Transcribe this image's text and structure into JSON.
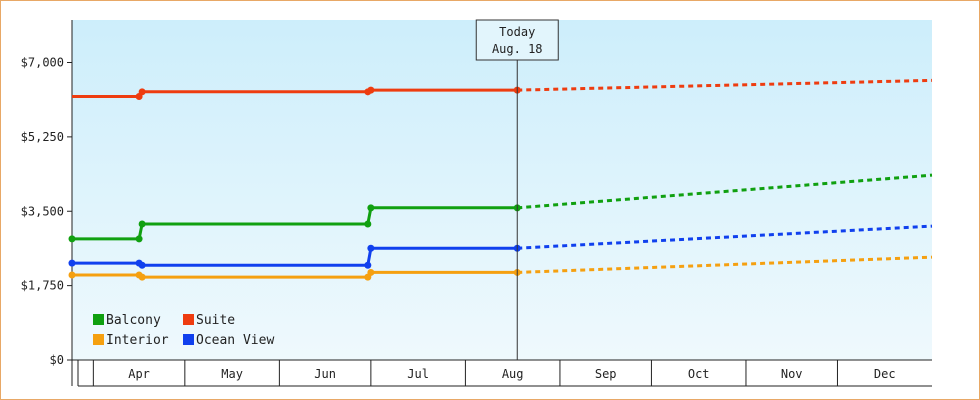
{
  "chart_data": {
    "type": "line",
    "x_type": "date",
    "xlim": [
      "2023-03-25",
      "2024-01-01"
    ],
    "ylim": [
      0,
      8000
    ],
    "y_ticks": [
      0,
      1750,
      3500,
      5250,
      7000
    ],
    "y_tick_labels": [
      "$0",
      "$1,750",
      "$3,500",
      "$5,250",
      "$7,000"
    ],
    "month_labels": [
      "Apr",
      "May",
      "Jun",
      "Jul",
      "Aug",
      "Sep",
      "Oct",
      "Nov",
      "Dec"
    ],
    "today_date": "2023-08-18",
    "today_label": "Today",
    "today_sublabel": "Aug. 18",
    "grid": false,
    "legend_position": "bottom-left",
    "series": [
      {
        "name": "Suite",
        "color": "#ee3c10",
        "history": [
          [
            "2023-03-25",
            6200
          ],
          [
            "2023-04-16",
            6200
          ],
          [
            "2023-04-17",
            6310
          ],
          [
            "2023-06-30",
            6310
          ],
          [
            "2023-07-01",
            6350
          ],
          [
            "2023-08-18",
            6350
          ]
        ],
        "markers": [
          [
            "2023-04-16",
            6200
          ],
          [
            "2023-04-17",
            6310
          ],
          [
            "2023-06-30",
            6310
          ],
          [
            "2023-07-01",
            6350
          ],
          [
            "2023-08-18",
            6350
          ]
        ],
        "forecast": [
          [
            "2023-08-18",
            6350
          ],
          [
            "2024-01-01",
            6580
          ]
        ]
      },
      {
        "name": "Balcony",
        "color": "#10a010",
        "history": [
          [
            "2023-03-25",
            2850
          ],
          [
            "2023-04-16",
            2850
          ],
          [
            "2023-04-17",
            3200
          ],
          [
            "2023-06-30",
            3200
          ],
          [
            "2023-07-01",
            3580
          ],
          [
            "2023-08-18",
            3580
          ]
        ],
        "markers": [
          [
            "2023-03-25",
            2850
          ],
          [
            "2023-04-16",
            2850
          ],
          [
            "2023-04-17",
            3200
          ],
          [
            "2023-06-30",
            3200
          ],
          [
            "2023-07-01",
            3580
          ],
          [
            "2023-08-18",
            3580
          ]
        ],
        "forecast": [
          [
            "2023-08-18",
            3580
          ],
          [
            "2024-01-01",
            4350
          ]
        ]
      },
      {
        "name": "Ocean View",
        "color": "#1040ee",
        "history": [
          [
            "2023-03-25",
            2280
          ],
          [
            "2023-04-16",
            2280
          ],
          [
            "2023-04-17",
            2230
          ],
          [
            "2023-06-30",
            2230
          ],
          [
            "2023-07-01",
            2630
          ],
          [
            "2023-08-18",
            2630
          ]
        ],
        "markers": [
          [
            "2023-03-25",
            2280
          ],
          [
            "2023-04-16",
            2280
          ],
          [
            "2023-04-17",
            2230
          ],
          [
            "2023-06-30",
            2230
          ],
          [
            "2023-07-01",
            2630
          ],
          [
            "2023-08-18",
            2630
          ]
        ],
        "forecast": [
          [
            "2023-08-18",
            2630
          ],
          [
            "2024-01-01",
            3150
          ]
        ]
      },
      {
        "name": "Interior",
        "color": "#f5a010",
        "history": [
          [
            "2023-03-25",
            2000
          ],
          [
            "2023-04-16",
            2000
          ],
          [
            "2023-04-17",
            1950
          ],
          [
            "2023-06-30",
            1950
          ],
          [
            "2023-07-01",
            2060
          ],
          [
            "2023-08-18",
            2060
          ]
        ],
        "markers": [
          [
            "2023-03-25",
            2000
          ],
          [
            "2023-04-16",
            2000
          ],
          [
            "2023-04-17",
            1950
          ],
          [
            "2023-06-30",
            1950
          ],
          [
            "2023-07-01",
            2060
          ],
          [
            "2023-08-18",
            2060
          ]
        ],
        "forecast": [
          [
            "2023-08-18",
            2060
          ],
          [
            "2024-01-01",
            2420
          ]
        ]
      }
    ],
    "legend": [
      [
        "Balcony",
        "Suite"
      ],
      [
        "Interior",
        "Ocean View"
      ]
    ]
  }
}
